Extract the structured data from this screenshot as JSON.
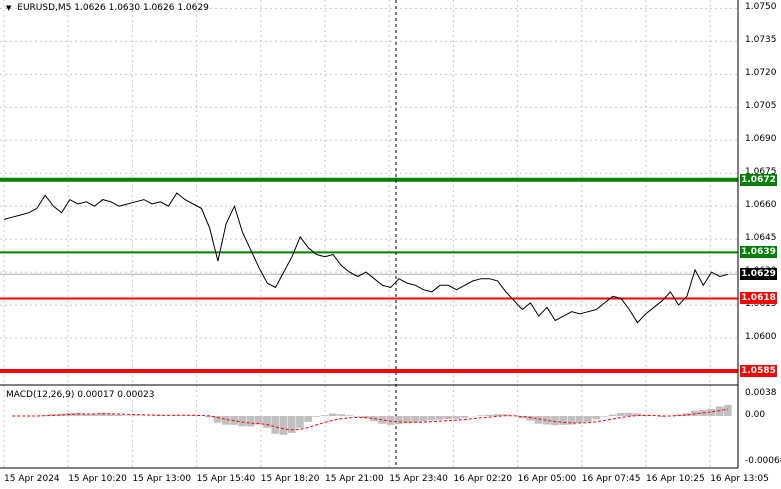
{
  "header": {
    "symbol": "EURUSD,M5",
    "ohlc": "1.0626 1.0630 1.0626 1.0629"
  },
  "macd_header": {
    "label": "MACD(12,26,9) 0.00017 0.00023"
  },
  "price_axis": {
    "ticks": [
      "1.0750",
      "1.0735",
      "1.0720",
      "1.0705",
      "1.0690",
      "1.0675",
      "1.0660",
      "1.0645",
      "1.0630",
      "1.0615",
      "1.0600"
    ]
  },
  "macd_axis": {
    "ticks": [
      "0.0038",
      "0.00",
      "-0.00068"
    ]
  },
  "time_axis": {
    "ticks": [
      "15 Apr 2024",
      "15 Apr 10:20",
      "15 Apr 13:00",
      "15 Apr 15:40",
      "15 Apr 18:20",
      "15 Apr 21:00",
      "15 Apr 23:40",
      "16 Apr 02:20",
      "16 Apr 05:00",
      "16 Apr 07:45",
      "16 Apr 10:25",
      "16 Apr 13:05"
    ]
  },
  "levels": [
    {
      "value": "1.0672",
      "color": "#008000"
    },
    {
      "value": "1.0639",
      "color": "#008000"
    },
    {
      "value": "1.0618",
      "color": "#ff0000"
    },
    {
      "value": "1.0585",
      "color": "#ff0000"
    }
  ],
  "current_price": {
    "value": "1.0629",
    "color": "#000000"
  },
  "colors": {
    "price_line": "#000000",
    "grid": "#c8c8c8",
    "macd_histogram": "#c0c0c0",
    "macd_signal": "#ff0000"
  },
  "chart_data": {
    "type": "line",
    "title": "EURUSD,M5",
    "ylim": [
      1.0585,
      1.0752
    ],
    "series": [
      {
        "values": [
          1.0654,
          1.0655,
          1.0656,
          1.0657,
          1.0659,
          1.0665,
          1.066,
          1.0657,
          1.0663,
          1.0661,
          1.0662,
          1.066,
          1.0663,
          1.0662,
          1.066,
          1.0661,
          1.0662,
          1.0663,
          1.0661,
          1.0662,
          1.066,
          1.0666,
          1.0663,
          1.0661,
          1.0659,
          1.065,
          1.0635,
          1.0652,
          1.066,
          1.0648,
          1.064,
          1.0632,
          1.0625,
          1.0623,
          1.063,
          1.0637,
          1.0646,
          1.0641,
          1.0638,
          1.0637,
          1.0638,
          1.0633,
          1.063,
          1.0628,
          1.063,
          1.0627,
          1.0624,
          1.0623,
          1.0627,
          1.0625,
          1.0624,
          1.0622,
          1.0621,
          1.0624,
          1.0624,
          1.0622,
          1.0624,
          1.0626,
          1.0627,
          1.0627,
          1.0626,
          1.0621,
          1.0617,
          1.0613,
          1.0616,
          1.061,
          1.0614,
          1.0608,
          1.061,
          1.0612,
          1.0611,
          1.0612,
          1.0613,
          1.0616,
          1.0619,
          1.0618,
          1.0613,
          1.0607,
          1.0611,
          1.0614,
          1.0617,
          1.0621,
          1.0615,
          1.0619,
          1.0631,
          1.0624,
          1.063,
          1.0628,
          1.0629
        ]
      }
    ]
  }
}
